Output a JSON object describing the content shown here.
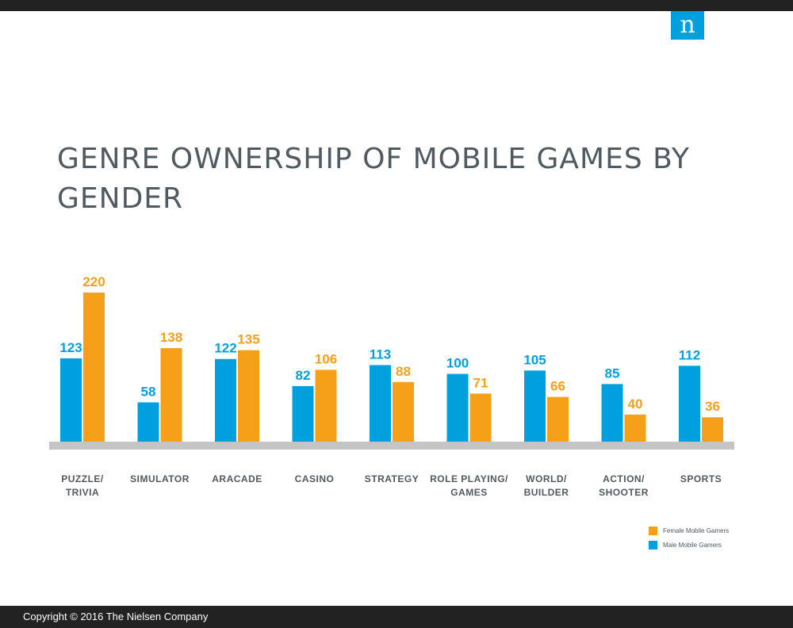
{
  "brand": {
    "logo_letter": "n"
  },
  "title": "GENRE OWNERSHIP OF MOBILE GAMES BY GENDER",
  "footer": {
    "copyright": "Copyright © 2016 The Nielsen Company"
  },
  "colors": {
    "male": "#00a0df",
    "female": "#f6a01a",
    "baseline": "#c4c4c4",
    "category_text": "#505a61"
  },
  "legend": {
    "placement": "bottom-right"
  },
  "chart_data": {
    "type": "bar",
    "title": "GENRE OWNERSHIP OF MOBILE GAMES BY GENDER",
    "xlabel": "",
    "ylabel": "",
    "ylim": [
      0,
      220
    ],
    "grid": false,
    "categories": [
      [
        "PUZZLE/",
        "TRIVIA"
      ],
      [
        "SIMULATOR"
      ],
      [
        "ARACADE"
      ],
      [
        "CASINO"
      ],
      [
        "STRATEGY"
      ],
      [
        "ROLE PLAYING/",
        "GAMES"
      ],
      [
        "WORLD/",
        "BUILDER"
      ],
      [
        "ACTION/",
        "SHOOTER"
      ],
      [
        "SPORTS"
      ]
    ],
    "series": [
      {
        "name": "Male Mobile Gamers",
        "color": "#00a0df",
        "values": [
          123,
          58,
          122,
          82,
          113,
          100,
          105,
          85,
          112
        ]
      },
      {
        "name": "Female Mobile Gamers",
        "color": "#f6a01a",
        "values": [
          220,
          138,
          135,
          106,
          88,
          71,
          66,
          40,
          36
        ]
      }
    ]
  }
}
